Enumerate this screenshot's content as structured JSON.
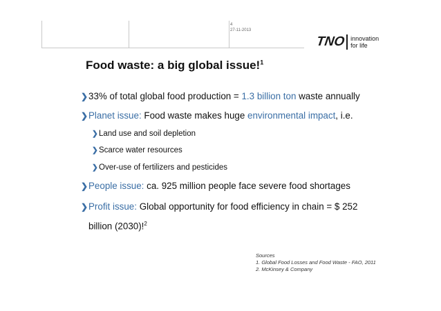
{
  "header": {
    "page_number": "4",
    "date": "27-11-2013"
  },
  "logo": {
    "mark": "TNO",
    "tagline_line1": "innovation",
    "tagline_line2": "for life"
  },
  "slide": {
    "title": "Food waste: a big global issue!",
    "title_sup": "1",
    "bullet1": {
      "pre": "33% of total global food production = ",
      "highlight": "1.3 billion ton",
      "post": " waste annually"
    },
    "bullet2": {
      "label": "Planet issue:",
      "pre": " Food waste makes huge ",
      "highlight": "environmental impact",
      "post": ", i.e."
    },
    "sub_bullets": [
      "Land use and soil depletion",
      "Scarce water resources",
      "Over-use of fertilizers and pesticides"
    ],
    "bullet3": {
      "label": "People issue:",
      "text": " ca. 925 million people face severe food shortages"
    },
    "bullet4": {
      "label": "Profit issue:",
      "text": " Global opportunity for food efficiency in chain = $ 252",
      "continuation": "billion (2030)!",
      "continuation_sup": "2"
    }
  },
  "sources": {
    "heading": "Sources",
    "items": [
      "1.  Global Food Losses and Food Waste - FAO, 2011",
      "2.  McKinsey & Company"
    ]
  },
  "colors": {
    "accent_blue": "#3a6ea5",
    "text": "#111111"
  }
}
